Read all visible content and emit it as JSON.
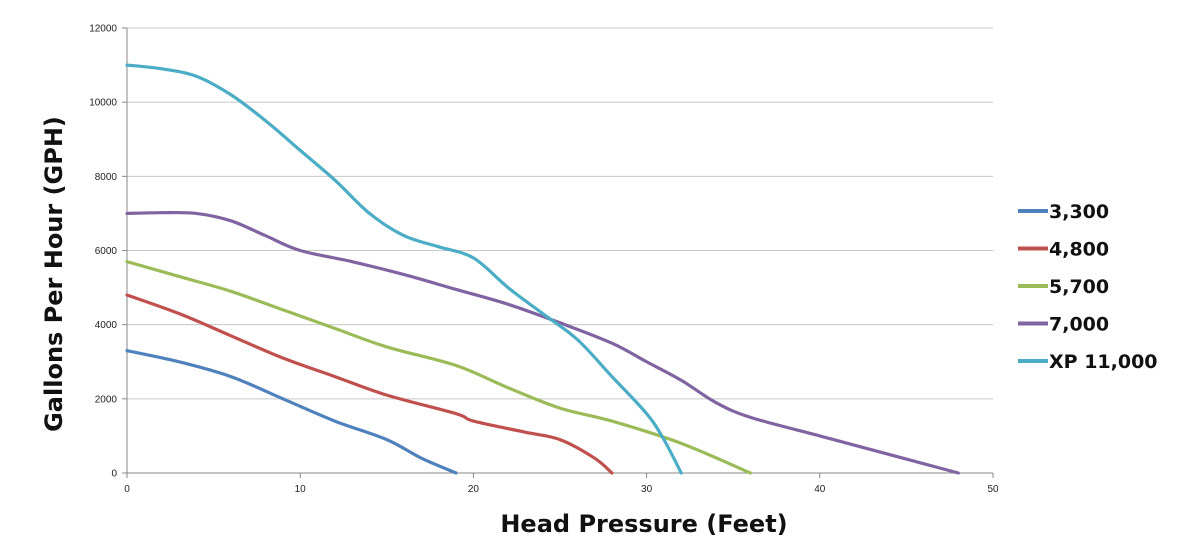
{
  "chart_data": {
    "type": "line",
    "title": "",
    "xlabel": "Head Pressure (Feet)",
    "ylabel": "Gallons Per Hour (GPH)",
    "xlim": [
      0,
      50
    ],
    "ylim": [
      0,
      12000
    ],
    "x_ticks": [
      0,
      10,
      20,
      30,
      40,
      50
    ],
    "y_ticks": [
      0,
      2000,
      4000,
      6000,
      8000,
      10000,
      12000
    ],
    "grid": "horizontal",
    "legend_position": "right",
    "series": [
      {
        "name": "3,300",
        "color": "#4f81bd",
        "x": [
          0,
          3,
          6,
          9,
          12,
          15,
          17,
          19
        ],
        "y": [
          3300,
          3000,
          2600,
          2000,
          1400,
          900,
          400,
          0
        ]
      },
      {
        "name": "4,800",
        "color": "#c0504d",
        "x": [
          0,
          3,
          6,
          9,
          12,
          15,
          19,
          20,
          23,
          25,
          27,
          28
        ],
        "y": [
          4800,
          4300,
          3700,
          3100,
          2600,
          2100,
          1600,
          1400,
          1100,
          900,
          400,
          0
        ]
      },
      {
        "name": "5,700",
        "color": "#9bbb59",
        "x": [
          0,
          3,
          6,
          9,
          12,
          15,
          19,
          22,
          25,
          28,
          32,
          36
        ],
        "y": [
          5700,
          5300,
          4900,
          4400,
          3900,
          3400,
          2900,
          2300,
          1750,
          1400,
          800,
          0
        ]
      },
      {
        "name": "7,000",
        "color": "#8064a2",
        "x": [
          0,
          2,
          4,
          6,
          8,
          10,
          13,
          16,
          19,
          22,
          25,
          28,
          30,
          32,
          34,
          36,
          40,
          44,
          48
        ],
        "y": [
          7000,
          7020,
          7000,
          6800,
          6400,
          6000,
          5700,
          5350,
          4950,
          4550,
          4050,
          3500,
          3000,
          2500,
          1900,
          1500,
          1000,
          500,
          0
        ]
      },
      {
        "name": "XP 11,000",
        "color": "#4bacc6",
        "x": [
          0,
          2,
          4,
          6,
          8,
          10,
          12,
          14,
          16,
          18,
          20,
          22,
          24,
          26,
          28,
          30,
          31,
          32
        ],
        "y": [
          11000,
          10900,
          10700,
          10200,
          9500,
          8700,
          7900,
          7000,
          6400,
          6100,
          5800,
          5000,
          4300,
          3600,
          2600,
          1600,
          900,
          0
        ]
      }
    ]
  }
}
